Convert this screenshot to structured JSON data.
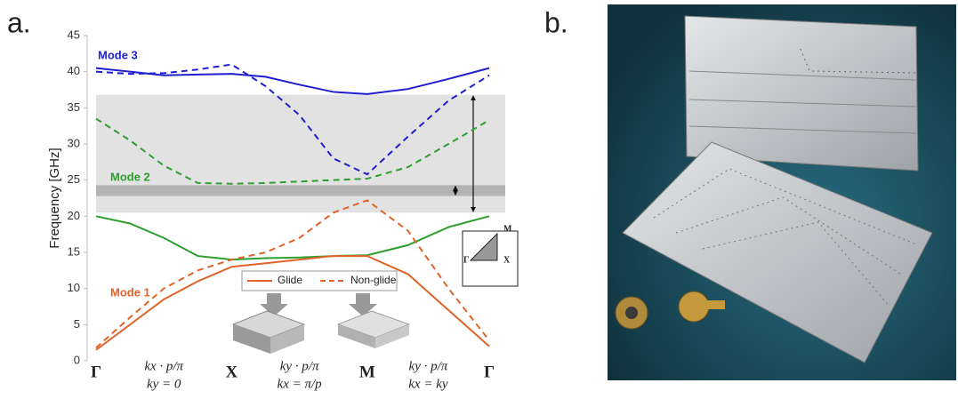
{
  "panel_labels": [
    "a.",
    "b."
  ],
  "chart_data": {
    "type": "line",
    "y_label": "Frequency [GHz]",
    "x": [
      0,
      0.25,
      0.5,
      0.75,
      1,
      1.25,
      1.5,
      1.75,
      2,
      2.3,
      2.6,
      2.9
    ],
    "xlim": [
      0,
      2.9
    ],
    "xticks": [
      {
        "value": 0,
        "label": "Γ"
      },
      {
        "value": 1,
        "label": "X"
      },
      {
        "value": 2,
        "label": "M"
      },
      {
        "value": 2.9,
        "label": "Γ"
      }
    ],
    "ylim": [
      0,
      45
    ],
    "yticks": [
      0,
      5,
      10,
      15,
      20,
      25,
      30,
      35,
      40,
      45
    ],
    "segment_labels": [
      [
        "kx · p/π",
        "ky = 0"
      ],
      [
        "ky · p/π",
        "kx = π/p"
      ],
      [
        "ky · p/π",
        "kx = ky"
      ]
    ],
    "line_styles": [
      {
        "label": "Glide",
        "dashed": false
      },
      {
        "label": "Non-glide",
        "dashed": true
      }
    ],
    "bands": [
      [
        20.5,
        36.8
      ],
      [
        22.8,
        24.3
      ]
    ],
    "series": [
      {
        "name": "Mode 3",
        "color": "#1f1fd0",
        "lines": [
          [
            40.5,
            40,
            39.5,
            39.6,
            39.7,
            39.3,
            38.2,
            37.2,
            36.9,
            37.6,
            39,
            40.5
          ],
          [
            40,
            39.7,
            39.8,
            40.3,
            41,
            38,
            34,
            28,
            25.8,
            31,
            36,
            39.5
          ]
        ]
      },
      {
        "name": "Mode 2",
        "color": "#2e9e2e",
        "lines": [
          [
            20,
            19,
            17,
            14.5,
            14,
            14.2,
            14.3,
            14.5,
            14.6,
            16,
            18.5,
            20
          ],
          [
            33.5,
            30.5,
            27,
            24.6,
            24.5,
            24.6,
            24.8,
            25,
            25.2,
            26.8,
            30,
            33.3
          ]
        ]
      },
      {
        "name": "Mode 1",
        "color": "#e0642a",
        "lines": [
          [
            1.5,
            5,
            8.5,
            11,
            13,
            13.5,
            14,
            14.5,
            14.5,
            12,
            7,
            2
          ],
          [
            1.8,
            6,
            10,
            12.5,
            14,
            15,
            17,
            20.5,
            22.2,
            18,
            10,
            2.8
          ]
        ]
      }
    ],
    "inset_labels": [
      "M",
      "Γ",
      "X"
    ]
  }
}
